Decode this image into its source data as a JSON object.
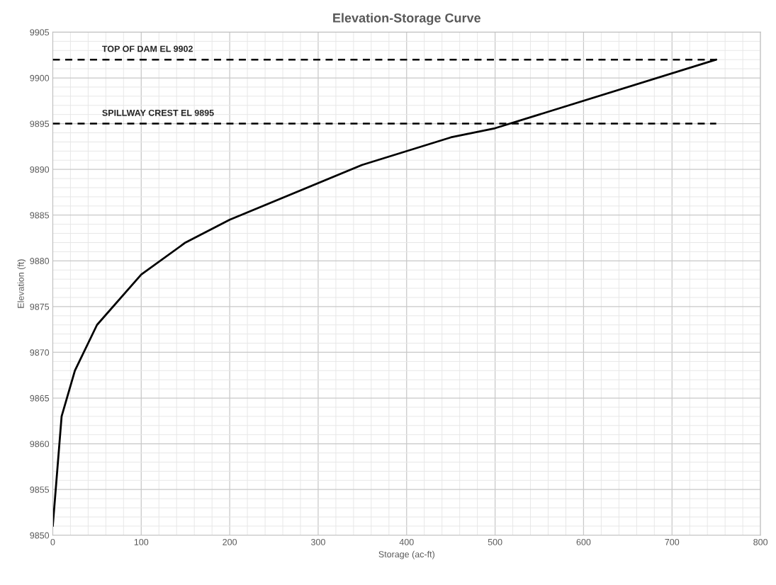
{
  "chart_data": {
    "type": "line",
    "title": "Elevation-Storage Curve",
    "xlabel": "Storage (ac-ft)",
    "ylabel": "Elevation (ft)",
    "x": [
      0,
      10,
      25,
      50,
      100,
      150,
      200,
      350,
      450,
      500,
      750
    ],
    "series": [
      {
        "color": "#000000",
        "values": [
          9851,
          9863,
          9868,
          9873,
          9878.5,
          9882,
          9884.5,
          9890.5,
          9893.5,
          9894.5,
          9902
        ]
      }
    ],
    "xlim": [
      0,
      800
    ],
    "xticks": [
      0,
      100,
      200,
      300,
      400,
      500,
      600,
      700,
      800
    ],
    "ylim": [
      9850,
      9905
    ],
    "yticks": [
      9850,
      9855,
      9860,
      9865,
      9870,
      9875,
      9880,
      9885,
      9890,
      9895,
      9900,
      9905
    ],
    "ref_lines": [
      {
        "axis": "y",
        "value": 9902,
        "label": "TOP OF DAM EL 9902",
        "color": "#000000",
        "line_style": "dashed"
      },
      {
        "axis": "y",
        "value": 9895,
        "label": "SPILLWAY CREST EL 9895",
        "color": "#000000",
        "line_style": "dashed"
      }
    ],
    "grid": true,
    "marker": "none",
    "line_style": "solid",
    "legend": false
  }
}
